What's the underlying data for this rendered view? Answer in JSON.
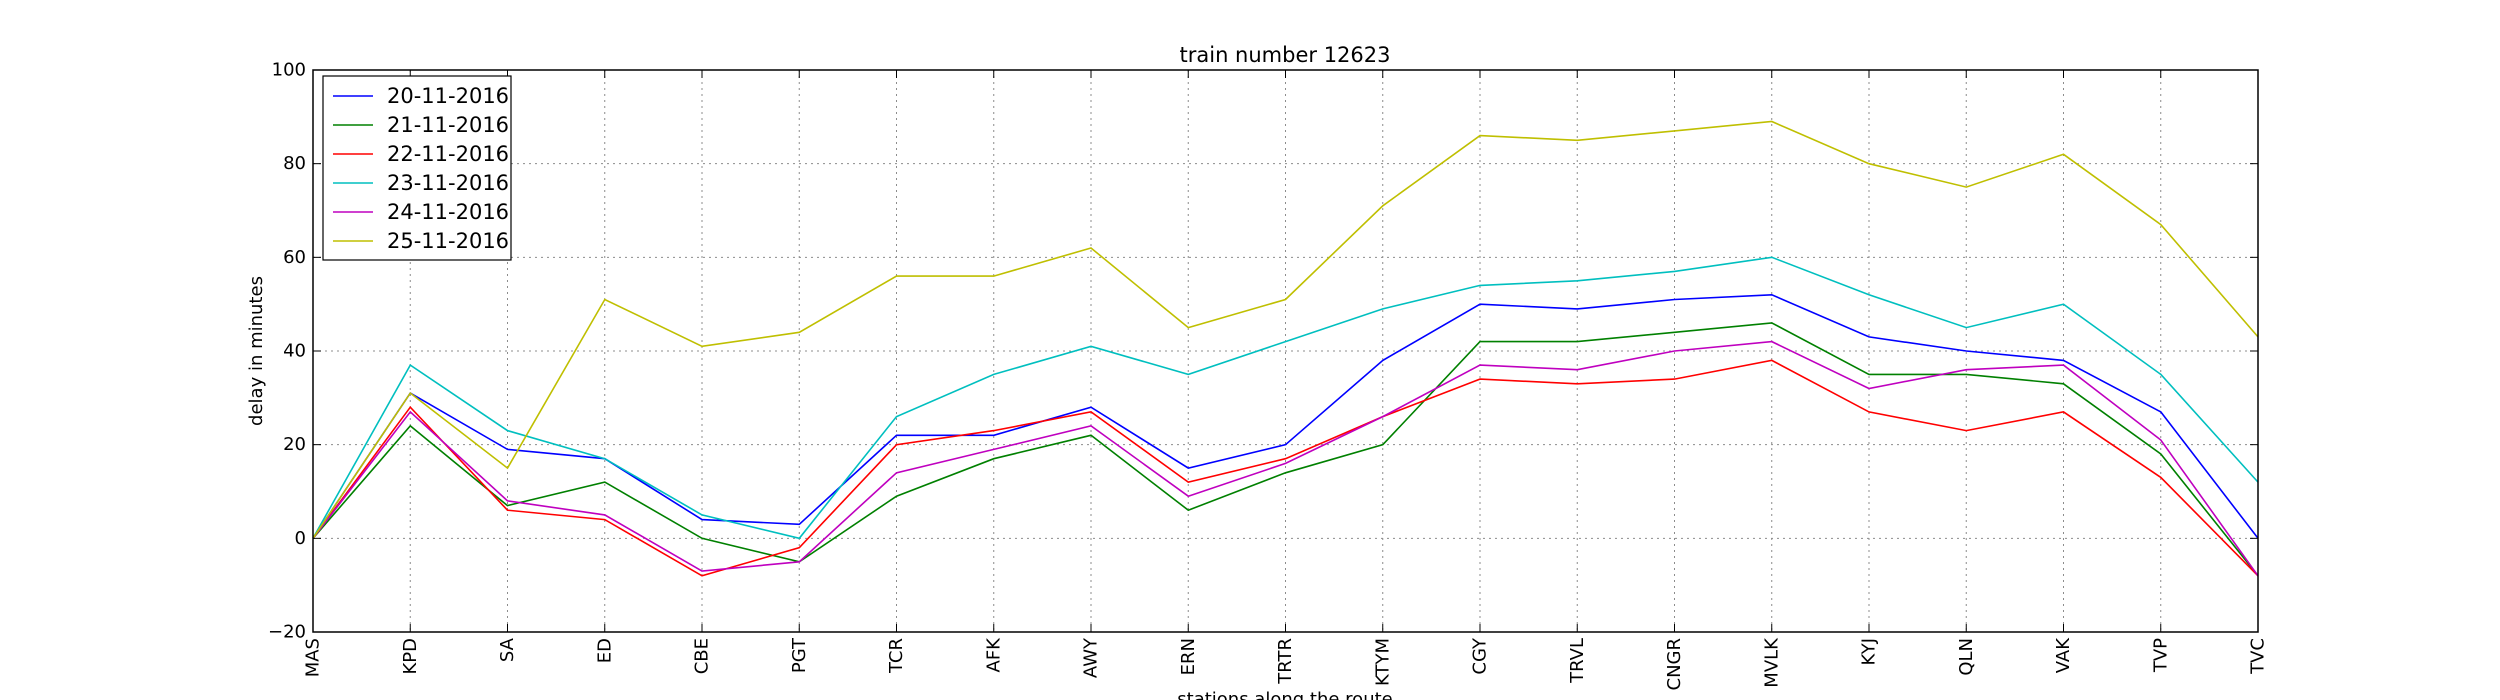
{
  "chart_data": {
    "type": "line",
    "title": "train number 12623",
    "xlabel": "stations along the route",
    "ylabel": "delay in minutes",
    "ylim": [
      -20,
      100
    ],
    "yticks": [
      -20,
      0,
      20,
      40,
      60,
      80,
      100
    ],
    "grid": true,
    "legend_position": "top-left",
    "categories": [
      "MAS",
      "KPD",
      "SA",
      "ED",
      "CBE",
      "PGT",
      "TCR",
      "AFK",
      "AWY",
      "ERN",
      "TRTR",
      "KTYM",
      "CGY",
      "TRVL",
      "CNGR",
      "MVLK",
      "KYJ",
      "QLN",
      "VAK",
      "TVP",
      "TVC"
    ],
    "series": [
      {
        "name": "20-11-2016",
        "color": "#0000ff",
        "values": [
          0,
          31,
          19,
          17,
          4,
          3,
          22,
          22,
          28,
          15,
          20,
          38,
          50,
          49,
          51,
          52,
          43,
          40,
          38,
          27,
          0
        ]
      },
      {
        "name": "21-11-2016",
        "color": "#008000",
        "values": [
          0,
          24,
          7,
          12,
          0,
          -5,
          9,
          17,
          22,
          6,
          14,
          20,
          42,
          42,
          44,
          46,
          35,
          35,
          33,
          18,
          -8
        ]
      },
      {
        "name": "22-11-2016",
        "color": "#ff0000",
        "values": [
          0,
          28,
          6,
          4,
          -8,
          -2,
          20,
          23,
          27,
          12,
          17,
          26,
          34,
          33,
          34,
          38,
          27,
          23,
          27,
          13,
          -8
        ]
      },
      {
        "name": "23-11-2016",
        "color": "#00bfbf",
        "values": [
          0,
          37,
          23,
          17,
          5,
          0,
          26,
          35,
          41,
          35,
          42,
          49,
          54,
          55,
          57,
          60,
          52,
          45,
          50,
          35,
          12
        ]
      },
      {
        "name": "24-11-2016",
        "color": "#bf00bf",
        "values": [
          0,
          27,
          8,
          5,
          -7,
          -5,
          14,
          19,
          24,
          9,
          16,
          26,
          37,
          36,
          40,
          42,
          32,
          36,
          37,
          21,
          -8
        ]
      },
      {
        "name": "25-11-2016",
        "color": "#bfbf00",
        "values": [
          0,
          31,
          15,
          51,
          41,
          44,
          56,
          56,
          62,
          45,
          51,
          71,
          86,
          85,
          87,
          89,
          80,
          75,
          82,
          67,
          43
        ]
      }
    ]
  }
}
